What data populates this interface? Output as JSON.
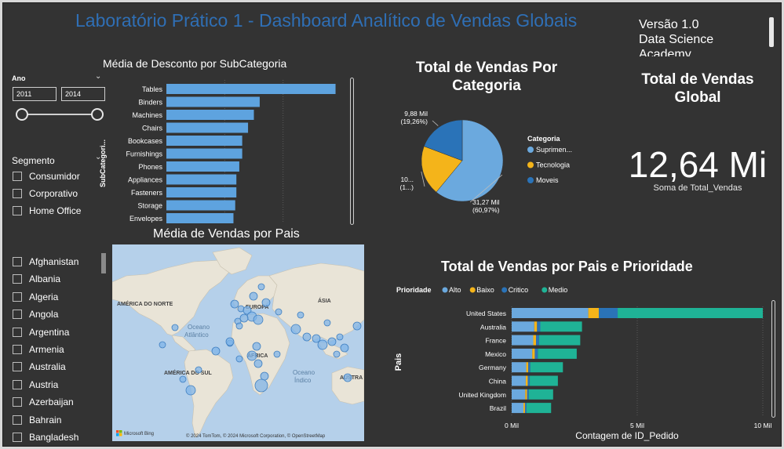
{
  "header": {
    "title": "Laboratório Prático 1 - Dashboard Analítico de Vendas Globais",
    "version_lines": [
      "Versão 1.0",
      "Data Science",
      "Academy"
    ]
  },
  "year_slicer": {
    "label": "Ano",
    "from": "2011",
    "to": "2014"
  },
  "segment_slicer": {
    "label": "Segmento",
    "items": [
      "Consumidor",
      "Corporativo",
      "Home Office"
    ]
  },
  "country_slicer": {
    "items": [
      "Afghanistan",
      "Albania",
      "Algeria",
      "Angola",
      "Argentina",
      "Armenia",
      "Australia",
      "Austria",
      "Azerbaijan",
      "Bahrain",
      "Bangladesh"
    ]
  },
  "discount_chart": {
    "title": "Média de Desconto por SubCategoria",
    "axis_label": "SubCategori...",
    "color": "#5ea3df"
  },
  "category_pie": {
    "title_lines": [
      "Total de Vendas Por",
      "Categoria"
    ],
    "legend_title": "Categoria",
    "labels": [
      {
        "text1": "9,88 Mil",
        "text2": "(19,26%)"
      },
      {
        "text1": "10...",
        "text2": "(1...)"
      },
      {
        "text1": "31,27 Mil",
        "text2": "(60,97%)"
      }
    ]
  },
  "kpi": {
    "title_lines": [
      "Total de Vendas",
      "Global"
    ],
    "value": "12,64 Mi",
    "caption": "Soma de Total_Vendas"
  },
  "map_panel": {
    "title": "Média de Vendas por Pais",
    "labels": [
      "AMÉRICA DO NORTE",
      "EUROPA",
      "ÁSIA",
      "Oceano",
      "Atlântico",
      "ÁFRICA",
      "AMÉRICA DO SUL",
      "Oceano",
      "Índico",
      "AUSTRA"
    ],
    "bing_logo": "Microsoft Bing",
    "attribution": "© 2024 TomTom, © 2024 Microsoft Corporation, © OpenStreetMap"
  },
  "priority_chart": {
    "title": "Total de Vendas por Pais e Prioridade",
    "legend_title": "Prioridade",
    "y_label": "Pais",
    "x_label": "Contagem de ID_Pedido"
  },
  "chart_data": [
    {
      "type": "bar",
      "title": "Média de Desconto por SubCategoria",
      "orientation": "horizontal",
      "categories": [
        "Tables",
        "Binders",
        "Machines",
        "Chairs",
        "Bookcases",
        "Furnishings",
        "Phones",
        "Appliances",
        "Fasteners",
        "Storage",
        "Envelopes"
      ],
      "values": [
        0.29,
        0.16,
        0.15,
        0.14,
        0.13,
        0.13,
        0.125,
        0.12,
        0.12,
        0.118,
        0.115
      ],
      "xlim": [
        0,
        0.3
      ],
      "color": "#5ea3df"
    },
    {
      "type": "pie",
      "title": "Total de Vendas Por Categoria",
      "legend_position": "right",
      "slices": [
        {
          "name": "Suprimen...",
          "value": 31270,
          "percent": 60.97,
          "color": "#6ba9de"
        },
        {
          "name": "Tecnologia",
          "value": 10140,
          "percent": 19.77,
          "color": "#f4b41a"
        },
        {
          "name": "Moveis",
          "value": 9880,
          "percent": 19.26,
          "color": "#2a73b8"
        }
      ]
    },
    {
      "type": "bar",
      "title": "Total de Vendas por Pais e Prioridade",
      "orientation": "horizontal",
      "stacked": true,
      "categories": [
        "United States",
        "Australia",
        "France",
        "Mexico",
        "Germany",
        "China",
        "United Kingdom",
        "Brazil"
      ],
      "series": [
        {
          "name": "Alto",
          "color": "#6ba9de",
          "values": [
            3050,
            900,
            860,
            820,
            580,
            560,
            540,
            470
          ]
        },
        {
          "name": "Baixo",
          "color": "#f4b41a",
          "values": [
            420,
            110,
            110,
            100,
            80,
            80,
            70,
            60
          ]
        },
        {
          "name": "Critico",
          "color": "#2a73b8",
          "values": [
            750,
            130,
            120,
            120,
            80,
            80,
            70,
            60
          ]
        },
        {
          "name": "Medio",
          "color": "#1fb396",
          "values": [
            5780,
            1660,
            1640,
            1550,
            1300,
            1120,
            970,
            980
          ]
        }
      ],
      "xticks": [
        "0 Mil",
        "5 Mil",
        "10 Mil"
      ],
      "xlim": [
        0,
        10000
      ],
      "legend_position": "top-left"
    }
  ]
}
